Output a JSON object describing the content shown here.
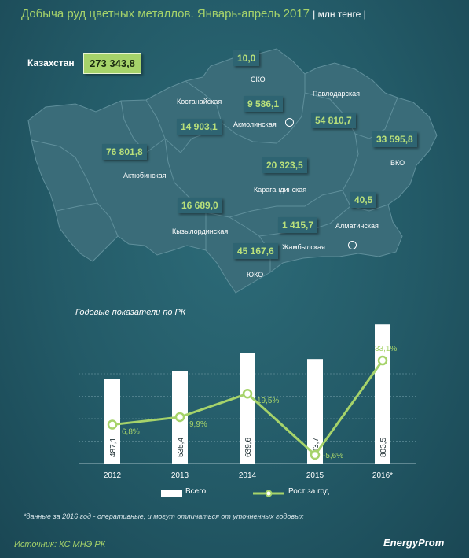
{
  "title": "Добыча руд цветных металлов. Январь-апрель 2017",
  "unit": "| млн тенге |",
  "kazakhstan": {
    "label": "Казахстан",
    "value": "273 343,8"
  },
  "regions": [
    {
      "name": "СКО",
      "value": "10,0"
    },
    {
      "name": "Костанайская",
      "value": "14 903,1"
    },
    {
      "name": "Акмолинская",
      "value": "9 586,1"
    },
    {
      "name": "Павлодарская",
      "value": "54 810,7"
    },
    {
      "name": "Актюбинская",
      "value": "76 801,8"
    },
    {
      "name": "ВКО",
      "value": "33 595,8"
    },
    {
      "name": "Карагандинская",
      "value": "20 323,5"
    },
    {
      "name": "Кызылординская",
      "value": "16 689,0"
    },
    {
      "name": "Алматинская",
      "value": "40,5"
    },
    {
      "name": "Жамбылская",
      "value": "1 415,7"
    },
    {
      "name": "ЮКО",
      "value": "45 167,6"
    }
  ],
  "chart_subtitle": "Годовые показатели по РК",
  "chart_data": {
    "type": "bar",
    "categories": [
      "2012",
      "2013",
      "2014",
      "2015",
      "2016*"
    ],
    "series": [
      {
        "name": "Всего",
        "type": "bar",
        "values": [
          487.1,
          535.4,
          639.6,
          603.7,
          803.5
        ],
        "labels": [
          "487,1",
          "535,4",
          "639,6",
          "603,7",
          "803,5"
        ],
        "color": "#ffffff"
      },
      {
        "name": "Рост за год",
        "type": "line",
        "values": [
          6.8,
          9.9,
          19.5,
          -5.6,
          33.1
        ],
        "labels": [
          "6,8%",
          "9,9%",
          "19,5%",
          "-5,6%",
          "33,1%"
        ],
        "color": "#a6d36a"
      }
    ],
    "grid": true,
    "legend": "bottom"
  },
  "footnote": "*данные за 2016 год - оперативные, и могут отличаться от уточненных годовых",
  "source": "Источник: КС МНЭ РК",
  "brand": "EnergyProm",
  "colors": {
    "accent": "#a6d36a",
    "background": "#235a67",
    "map": "#3a6c79"
  }
}
